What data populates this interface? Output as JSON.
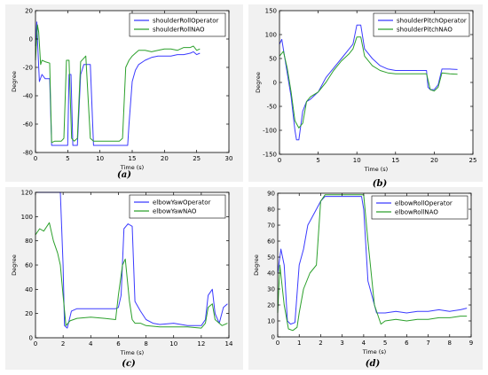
{
  "colors": {
    "series1": "#3b3bff",
    "series2": "#2ca02c",
    "axis": "#000000",
    "panel_bg": "#f1f1f1"
  },
  "chart_data": [
    {
      "panel": "a",
      "caption": "(a)",
      "type": "line",
      "xlabel": "Time (s)",
      "ylabel": "Degree",
      "xlim": [
        0,
        30
      ],
      "ylim": [
        -80,
        20
      ],
      "xticks": [
        "0",
        "5",
        "10",
        "15",
        "20",
        "25",
        "30"
      ],
      "yticks": [
        "-80",
        "-60",
        "-40",
        "-20",
        "0",
        "20"
      ],
      "legend_position": "top-right",
      "grid": false,
      "series": [
        {
          "name": "shoulderRollOperator",
          "x": [
            0,
            0.2,
            0.4,
            0.6,
            1.0,
            1.5,
            2.2,
            2.5,
            3.0,
            4.0,
            4.5,
            5.0,
            5.2,
            5.5,
            5.8,
            6.3,
            6.5,
            7.0,
            7.5,
            8.0,
            8.5,
            9.0,
            9.2,
            10.0,
            11.0,
            12.0,
            13.0,
            14.0,
            14.3,
            14.5,
            15.0,
            15.5,
            16.0,
            17.0,
            18.0,
            19.0,
            20.0,
            21.0,
            22.0,
            23.0,
            24.0,
            24.5,
            25.0,
            25.5
          ],
          "y": [
            -5,
            12,
            -10,
            -30,
            -25,
            -28,
            -28,
            -75,
            -75,
            -75,
            -75,
            -75,
            -25,
            -25,
            -75,
            -75,
            -75,
            -25,
            -18,
            -18,
            -18,
            -75,
            -75,
            -75,
            -75,
            -75,
            -75,
            -75,
            -75,
            -60,
            -30,
            -22,
            -18,
            -15,
            -13,
            -12,
            -12,
            -12,
            -11,
            -11,
            -10,
            -9,
            -11,
            -10
          ]
        },
        {
          "name": "shoulderRollNAO",
          "x": [
            0,
            0.3,
            0.5,
            0.8,
            1.0,
            1.5,
            2.2,
            2.5,
            3.0,
            4.0,
            4.4,
            4.8,
            5.2,
            5.6,
            6.0,
            6.5,
            7.0,
            7.4,
            7.8,
            8.5,
            9.0,
            9.4,
            10.0,
            11.0,
            12.0,
            13.0,
            13.5,
            14.0,
            14.5,
            15.0,
            15.5,
            16.0,
            17.0,
            18.0,
            19.0,
            20.0,
            21.0,
            22.0,
            23.0,
            24.0,
            24.5,
            25.0,
            25.5
          ],
          "y": [
            -15,
            10,
            5,
            -18,
            -15,
            -16,
            -17,
            -73,
            -72,
            -72,
            -70,
            -15,
            -15,
            -70,
            -72,
            -70,
            -16,
            -14,
            -12,
            -70,
            -72,
            -72,
            -72,
            -72,
            -72,
            -72,
            -70,
            -20,
            -15,
            -12,
            -10,
            -8,
            -8,
            -9,
            -8,
            -7,
            -7,
            -8,
            -6,
            -6,
            -5,
            -8,
            -7
          ]
        }
      ]
    },
    {
      "panel": "b",
      "caption": "(b)",
      "type": "line",
      "xlabel": "Time (s)",
      "ylabel": "Degree",
      "xlim": [
        0,
        25
      ],
      "ylim": [
        -150,
        150
      ],
      "xticks": [
        "0",
        "5",
        "10",
        "15",
        "20",
        "25"
      ],
      "yticks": [
        "-150",
        "-100",
        "-50",
        "0",
        "50",
        "100",
        "150"
      ],
      "legend_position": "top-right",
      "grid": false,
      "series": [
        {
          "name": "shoulderPitchOperator",
          "x": [
            0,
            0.3,
            0.6,
            1.0,
            1.5,
            2.0,
            2.2,
            2.5,
            3.0,
            3.5,
            4.0,
            5.0,
            6.0,
            7.0,
            8.0,
            9.0,
            9.5,
            10.0,
            10.5,
            11.0,
            12.0,
            13.0,
            14.0,
            15.0,
            16.0,
            17.0,
            18.0,
            19.0,
            19.2,
            19.5,
            20.0,
            20.5,
            21.0,
            22.0,
            23.0
          ],
          "y": [
            80,
            90,
            60,
            20,
            -30,
            -100,
            -120,
            -120,
            -60,
            -40,
            -35,
            -20,
            10,
            30,
            50,
            70,
            80,
            120,
            120,
            70,
            50,
            35,
            28,
            25,
            25,
            25,
            25,
            25,
            -10,
            -15,
            -15,
            -5,
            28,
            28,
            27
          ]
        },
        {
          "name": "shoulderPitchNAO",
          "x": [
            0,
            0.5,
            1.0,
            1.5,
            2.0,
            2.5,
            3.0,
            3.5,
            4.0,
            5.0,
            6.0,
            7.0,
            8.0,
            9.0,
            9.5,
            10.0,
            10.5,
            11.0,
            12.0,
            13.0,
            14.0,
            15.0,
            16.0,
            17.0,
            18.0,
            19.0,
            19.5,
            20.0,
            20.5,
            21.0,
            22.0,
            23.0
          ],
          "y": [
            55,
            65,
            30,
            -20,
            -80,
            -95,
            -85,
            -40,
            -30,
            -20,
            0,
            25,
            45,
            60,
            70,
            95,
            95,
            55,
            35,
            25,
            20,
            18,
            18,
            18,
            18,
            18,
            -15,
            -18,
            -10,
            20,
            18,
            17
          ]
        }
      ]
    },
    {
      "panel": "c",
      "caption": "(c)",
      "type": "line",
      "xlabel": "Time (s)",
      "ylabel": "Degree",
      "xlim": [
        0,
        14
      ],
      "ylim": [
        0,
        120
      ],
      "xticks": [
        "0",
        "2",
        "4",
        "6",
        "8",
        "10",
        "12",
        "14"
      ],
      "yticks": [
        "0",
        "20",
        "40",
        "60",
        "80",
        "100",
        "120"
      ],
      "legend_position": "top-right",
      "grid": false,
      "series": [
        {
          "name": "elbowYawOperator",
          "x": [
            0,
            0.5,
            1.0,
            1.5,
            1.8,
            2.0,
            2.1,
            2.3,
            2.6,
            3.0,
            4.0,
            5.0,
            5.8,
            6.0,
            6.2,
            6.4,
            6.7,
            7.0,
            7.2,
            7.6,
            8.0,
            8.5,
            9.0,
            10.0,
            11.0,
            12.0,
            12.3,
            12.5,
            12.8,
            13.0,
            13.3,
            13.6,
            13.9
          ],
          "y": [
            120,
            120,
            120,
            120,
            120,
            60,
            10,
            8,
            22,
            24,
            24,
            24,
            24,
            25,
            35,
            90,
            94,
            92,
            30,
            22,
            15,
            12,
            11,
            12,
            10,
            10,
            15,
            35,
            40,
            20,
            12,
            25,
            28
          ]
        },
        {
          "name": "elbowYawNAO",
          "x": [
            0,
            0.3,
            0.6,
            1.0,
            1.3,
            1.6,
            1.8,
            2.0,
            2.2,
            2.5,
            3.0,
            4.0,
            5.0,
            5.8,
            6.0,
            6.3,
            6.5,
            6.8,
            7.0,
            7.2,
            7.6,
            8.0,
            9.0,
            10.0,
            11.0,
            12.0,
            12.3,
            12.5,
            12.8,
            13.0,
            13.5,
            13.9
          ],
          "y": [
            85,
            90,
            88,
            95,
            80,
            70,
            60,
            35,
            10,
            14,
            16,
            17,
            16,
            15,
            35,
            60,
            65,
            30,
            15,
            12,
            12,
            10,
            9,
            9,
            9,
            8,
            12,
            25,
            28,
            15,
            10,
            12
          ]
        }
      ]
    },
    {
      "panel": "d",
      "caption": "(d)",
      "type": "line",
      "xlabel": "Time (s)",
      "ylabel": "Degree",
      "xlim": [
        0,
        9
      ],
      "ylim": [
        0,
        90
      ],
      "xticks": [
        "0",
        "1",
        "2",
        "3",
        "4",
        "5",
        "6",
        "7",
        "8",
        "9"
      ],
      "yticks": [
        "0",
        "10",
        "20",
        "30",
        "40",
        "50",
        "60",
        "70",
        "80",
        "90"
      ],
      "legend_position": "top-right",
      "grid": false,
      "series": [
        {
          "name": "elbowRollOperator",
          "x": [
            0,
            0.15,
            0.3,
            0.45,
            0.6,
            0.8,
            1.0,
            1.2,
            1.4,
            1.6,
            1.8,
            2.0,
            2.2,
            2.5,
            3.0,
            3.5,
            3.9,
            4.0,
            4.2,
            4.4,
            4.6,
            5.0,
            5.5,
            6.0,
            6.5,
            7.0,
            7.5,
            8.0,
            8.5,
            8.8
          ],
          "y": [
            40,
            55,
            45,
            10,
            8,
            9,
            45,
            55,
            70,
            75,
            80,
            85,
            88,
            88,
            88,
            88,
            88,
            80,
            35,
            25,
            15,
            15,
            16,
            15,
            16,
            16,
            17,
            16,
            17,
            18
          ]
        },
        {
          "name": "elbowRollNAO",
          "x": [
            0,
            0.1,
            0.3,
            0.5,
            0.7,
            0.9,
            1.0,
            1.2,
            1.5,
            1.8,
            2.0,
            2.2,
            2.5,
            3.0,
            3.5,
            4.0,
            4.2,
            4.5,
            4.8,
            5.0,
            5.5,
            6.0,
            6.5,
            7.0,
            7.5,
            8.0,
            8.5,
            8.8
          ],
          "y": [
            15,
            45,
            20,
            5,
            4,
            6,
            15,
            30,
            40,
            45,
            85,
            89,
            89,
            89,
            89,
            89,
            60,
            20,
            8,
            10,
            11,
            10,
            11,
            11,
            12,
            12,
            13,
            13
          ]
        }
      ]
    }
  ]
}
